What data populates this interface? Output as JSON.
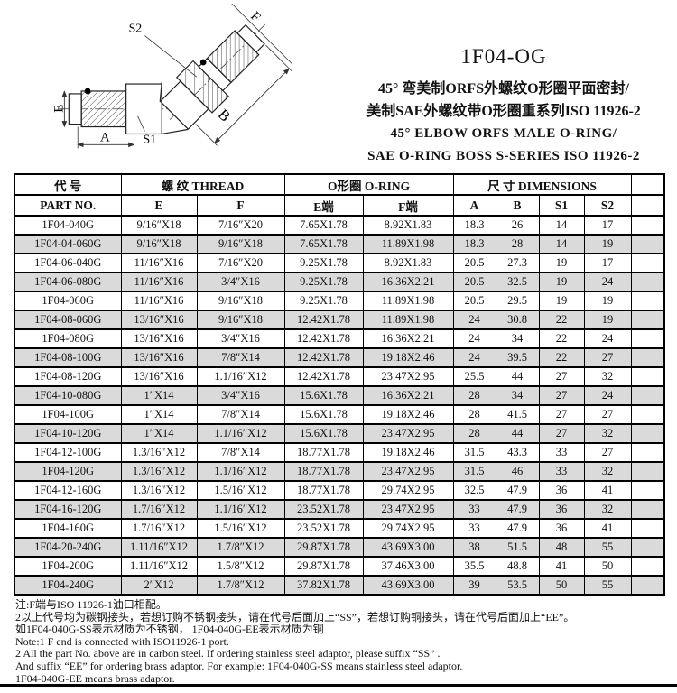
{
  "header": {
    "code": "1F04-OG",
    "title_cn_1": "45° 弯美制ORFS外螺纹O形圈平面密封/",
    "title_cn_2": "美制SAE外螺纹带O形圈重系列ISO 11926-2",
    "title_en_1": "45° ELBOW ORFS MALE O-RING/",
    "title_en_2": "SAE O-RING BOSS S-SERIES ISO 11926-2"
  },
  "drawing": {
    "labels": {
      "e": "E",
      "a": "A",
      "s1": "S1",
      "s2": "S2",
      "b": "B",
      "f": "F"
    }
  },
  "table": {
    "group": {
      "part": "代  号",
      "thread": "螺  纹    THREAD",
      "oring": "O形圈  O-RING",
      "dimensions": "尺  寸    DIMENSIONS",
      "blank": ""
    },
    "columns": [
      "PART NO.",
      "E",
      "F",
      "E端",
      "F端",
      "A",
      "B",
      "S1",
      "S2",
      ""
    ],
    "rows": [
      [
        "1F04-040G",
        "9/16″X18",
        "7/16″X20",
        "7.65X1.78",
        "8.92X1.83",
        "18.3",
        "26",
        "14",
        "17"
      ],
      [
        "1F04-04-060G",
        "9/16″X18",
        "9/16″X18",
        "7.65X1.78",
        "11.89X1.98",
        "18.3",
        "28",
        "14",
        "19"
      ],
      [
        "1F04-06-040G",
        "11/16″X16",
        "7/16″X20",
        "9.25X1.78",
        "8.92X1.83",
        "20.5",
        "27.3",
        "19",
        "17"
      ],
      [
        "1F04-06-080G",
        "11/16″X16",
        "3/4″X16",
        "9.25X1.78",
        "16.36X2.21",
        "20.5",
        "32.5",
        "19",
        "24"
      ],
      [
        "1F04-060G",
        "11/16″X16",
        "9/16″X18",
        "9.25X1.78",
        "11.89X1.98",
        "20.5",
        "29.5",
        "19",
        "19"
      ],
      [
        "1F04-08-060G",
        "13/16″X16",
        "9/16″X18",
        "12.42X1.78",
        "11.89X1.98",
        "24",
        "30.8",
        "22",
        "19"
      ],
      [
        "1F04-080G",
        "13/16″X16",
        "3/4″X16",
        "12.42X1.78",
        "16.36X2.21",
        "24",
        "34",
        "22",
        "24"
      ],
      [
        "1F04-08-100G",
        "13/16″X16",
        "7/8″X14",
        "12.42X1.78",
        "19.18X2.46",
        "24",
        "39.5",
        "22",
        "27"
      ],
      [
        "1F04-08-120G",
        "13/16″X16",
        "1.1/16″X12",
        "12.42X1.78",
        "23.47X2.95",
        "25.5",
        "44",
        "27",
        "32"
      ],
      [
        "1F04-10-080G",
        "1″X14",
        "3/4″X16",
        "15.6X1.78",
        "16.36X2.21",
        "28",
        "34",
        "27",
        "24"
      ],
      [
        "1F04-100G",
        "1″X14",
        "7/8″X14",
        "15.6X1.78",
        "19.18X2.46",
        "28",
        "41.5",
        "27",
        "27"
      ],
      [
        "1F04-10-120G",
        "1″X14",
        "1.1/16″X12",
        "15.6X1.78",
        "23.47X2.95",
        "28",
        "44",
        "27",
        "32"
      ],
      [
        "1F04-12-100G",
        "1.3/16″X12",
        "7/8″X14",
        "18.77X1.78",
        "19.18X2.46",
        "31.5",
        "43.3",
        "33",
        "27"
      ],
      [
        "1F04-120G",
        "1.3/16″X12",
        "1.1/16″X12",
        "18.77X1.78",
        "23.47X2.95",
        "31.5",
        "46",
        "33",
        "32"
      ],
      [
        "1F04-12-160G",
        "1.3/16″X12",
        "1.5/16″X12",
        "18.77X1.78",
        "29.74X2.95",
        "32.5",
        "47.9",
        "36",
        "41"
      ],
      [
        "1F04-16-120G",
        "1.7/16″X12",
        "1.1/16″X12",
        "23.52X1.78",
        "23.47X2.95",
        "33",
        "47.9",
        "36",
        "32"
      ],
      [
        "1F04-160G",
        "1.7/16″X12",
        "1.5/16″X12",
        "23.52X1.78",
        "29.74X2.95",
        "33",
        "47.9",
        "36",
        "41"
      ],
      [
        "1F04-20-240G",
        "1.11/16″X12",
        "1.7/8″X12",
        "29.87X1.78",
        "43.69X3.00",
        "38",
        "51.5",
        "48",
        "55"
      ],
      [
        "1F04-200G",
        "1.11/16″X12",
        "1.5/8″X12",
        "29.87X1.78",
        "37.46X3.00",
        "35.5",
        "48.8",
        "41",
        "50"
      ],
      [
        "1F04-240G",
        "2″X12",
        "1.7/8″X12",
        "37.82X1.78",
        "43.69X3.00",
        "39",
        "53.5",
        "50",
        "55"
      ]
    ]
  },
  "notes": [
    "注:F端与ISO 11926-1油口相配。",
    "2以上代号均为碳钢接头，若想订购不锈钢接头，请在代号后面加上“SS”，若想订购铜接头，请在代号后面加上“EE”。",
    "如1F04-040G-SS表示材质为不锈钢， 1F04-040G-EE表示材质为铜",
    "Note:1  F end is connected with ISO11926-1 port.",
    "2 All the part No. above are in carbon steel. If ordering stainless steel adaptor, please suffix “SS” .",
    "And suffix “EE” for ordering brass adaptor. For example: 1F04-040G-SS  means stainless steel adaptor.",
    "1F04-040G-EE means brass adaptor."
  ]
}
